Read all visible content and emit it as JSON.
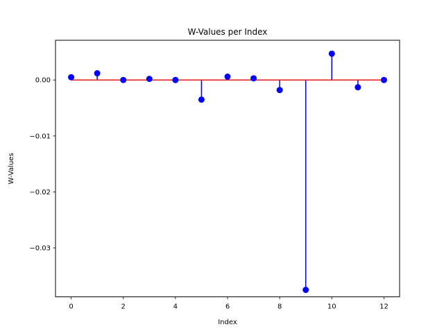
{
  "chart_data": {
    "type": "stem",
    "title": "W-Values per Index",
    "xlabel": "Index",
    "ylabel": "W-Values",
    "xlim": [
      -0.6,
      12.6
    ],
    "ylim": [
      -0.03875,
      0.0071
    ],
    "xticks": [
      0,
      2,
      4,
      6,
      8,
      10,
      12
    ],
    "xtick_labels": [
      "0",
      "2",
      "4",
      "6",
      "8",
      "10",
      "12"
    ],
    "yticks": [
      0.0,
      -0.01,
      -0.02,
      -0.03
    ],
    "ytick_labels": [
      "0.00",
      "−0.01",
      "−0.02",
      "−0.03"
    ],
    "grid": false,
    "baseline": 0.0,
    "x": [
      0,
      1,
      2,
      3,
      4,
      5,
      6,
      7,
      8,
      9,
      10,
      11,
      12
    ],
    "values": [
      0.0005,
      0.0012,
      0.0,
      0.0002,
      0.0,
      -0.0035,
      0.0006,
      0.0003,
      -0.0018,
      -0.0375,
      0.0047,
      -0.0013,
      0.0
    ],
    "colors": {
      "stem": "#0000ff",
      "marker": "#0000ff",
      "baseline": "#e41a1c",
      "axes": "#000000",
      "background": "#ffffff"
    }
  }
}
